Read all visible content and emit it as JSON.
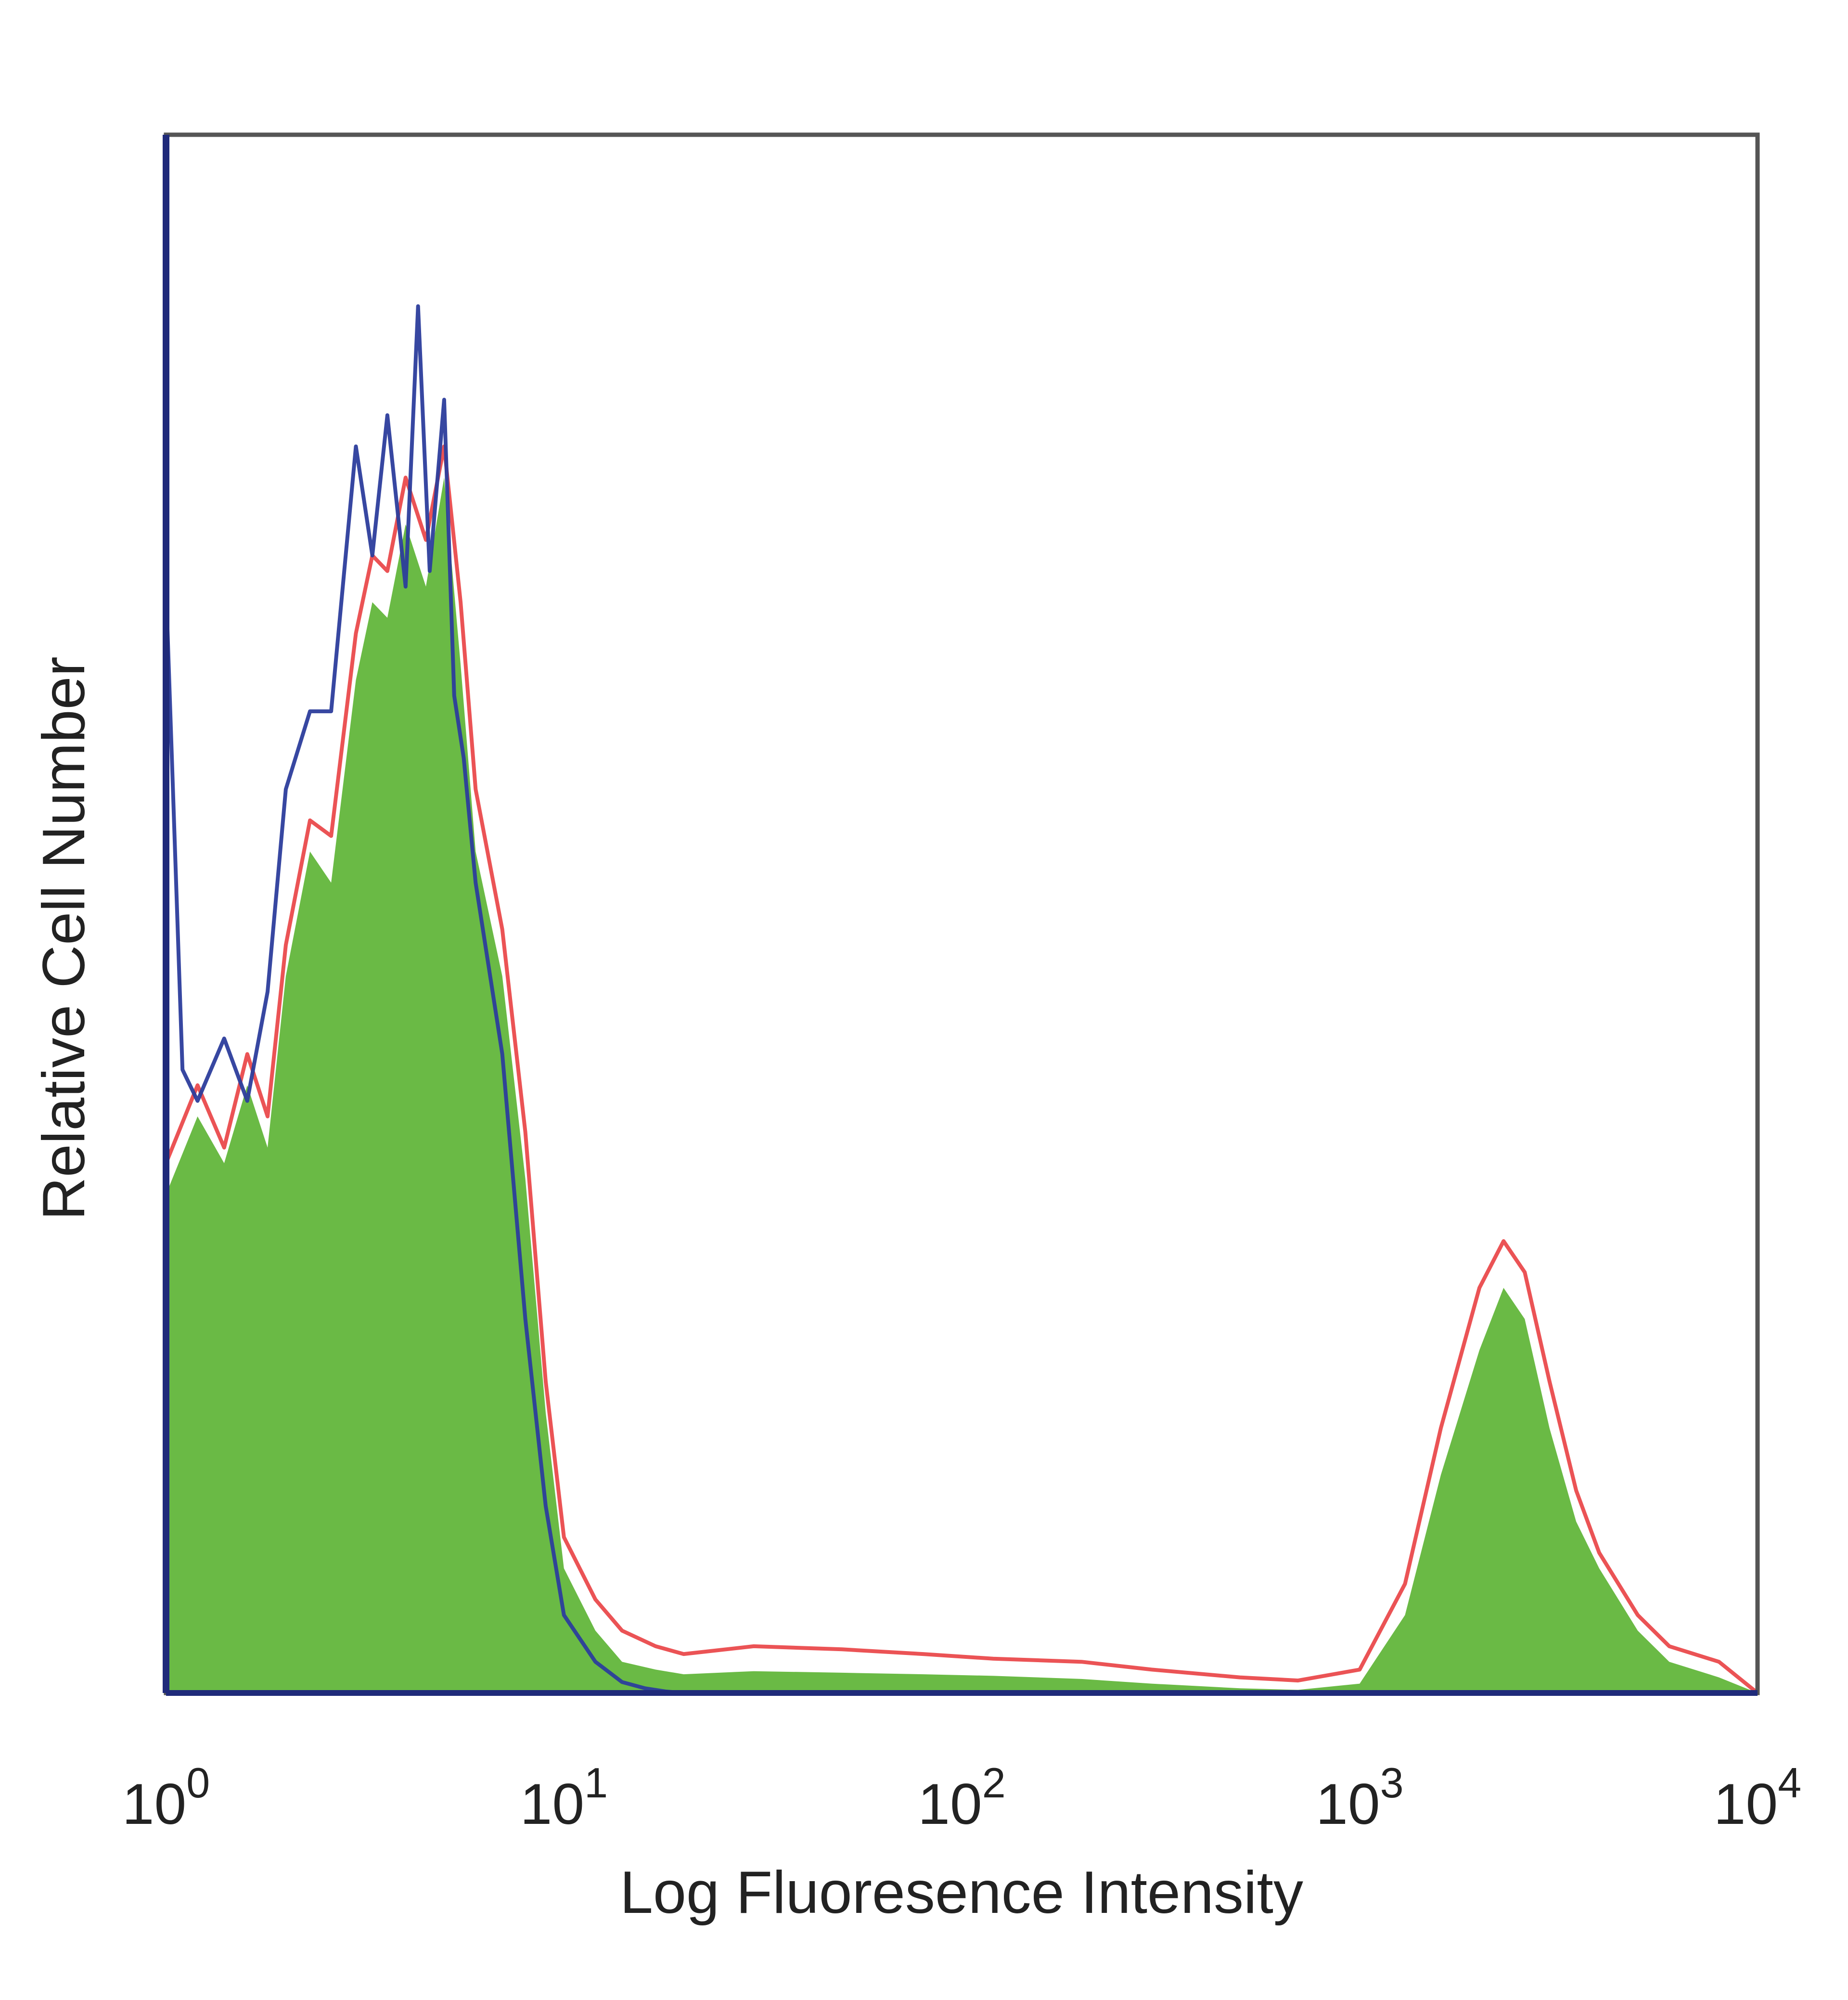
{
  "chart_data": {
    "type": "area",
    "title": "",
    "xlabel": "Log Fluoresence Intensity",
    "ylabel": "Relative Cell Number",
    "x_scale": "log",
    "xlim": [
      1,
      10000
    ],
    "ylim": [
      0,
      100
    ],
    "grid": false,
    "legend": "none",
    "x_ticks": [
      {
        "value": 1,
        "base": "10",
        "exp": "0"
      },
      {
        "value": 10,
        "base": "10",
        "exp": "1"
      },
      {
        "value": 100,
        "base": "10",
        "exp": "2"
      },
      {
        "value": 1000,
        "base": "10",
        "exp": "3"
      },
      {
        "value": 10000,
        "base": "10",
        "exp": "4"
      }
    ],
    "series": [
      {
        "style": "filled",
        "color": "#6aba45",
        "x": [
          1,
          1.2,
          1.4,
          1.6,
          1.8,
          2,
          2.3,
          2.6,
          3,
          3.3,
          3.6,
          4,
          4.5,
          5,
          5.5,
          6,
          7,
          8,
          9,
          10,
          12,
          14,
          17,
          20,
          30,
          50,
          80,
          120,
          200,
          300,
          500,
          700,
          1000,
          1300,
          1600,
          2000,
          2300,
          2600,
          3000,
          3500,
          4000,
          5000,
          6000,
          8000,
          10000
        ],
        "y": [
          32,
          37,
          34,
          39,
          35,
          46,
          54,
          52,
          65,
          70,
          69,
          75,
          71,
          78,
          66,
          54,
          46,
          33,
          18,
          8,
          4,
          2,
          1.5,
          1.2,
          1.4,
          1.3,
          1.2,
          1.1,
          0.9,
          0.6,
          0.3,
          0.2,
          0.6,
          5,
          14,
          22,
          26,
          24,
          17,
          11,
          8,
          4,
          2,
          1,
          0
        ]
      },
      {
        "style": "line",
        "color": "#e41a1c",
        "x": [
          1,
          1.2,
          1.4,
          1.6,
          1.8,
          2,
          2.3,
          2.6,
          3,
          3.3,
          3.6,
          4,
          4.5,
          5,
          5.5,
          6,
          7,
          8,
          9,
          10,
          12,
          14,
          17,
          20,
          30,
          50,
          80,
          120,
          200,
          300,
          500,
          700,
          1000,
          1300,
          1600,
          2000,
          2300,
          2600,
          3000,
          3500,
          4000,
          5000,
          6000,
          8000,
          10000
        ],
        "y": [
          34,
          39,
          35,
          41,
          37,
          48,
          56,
          55,
          68,
          73,
          72,
          78,
          74,
          80,
          70,
          58,
          49,
          36,
          20,
          10,
          6,
          4,
          3,
          2.5,
          3,
          2.8,
          2.5,
          2.2,
          2,
          1.5,
          1,
          0.8,
          1.5,
          7,
          17,
          26,
          29,
          27,
          20,
          13,
          9,
          5,
          3,
          2,
          0
        ]
      },
      {
        "style": "line",
        "color": "#2c3d9c",
        "x": [
          1,
          1.1,
          1.2,
          1.4,
          1.6,
          1.8,
          2,
          2.3,
          2.6,
          3,
          3.3,
          3.6,
          4,
          4.3,
          4.6,
          5,
          5.3,
          5.6,
          6,
          7,
          8,
          9,
          10,
          12,
          14,
          16,
          18,
          20
        ],
        "y": [
          71,
          40,
          38,
          42,
          38,
          45,
          58,
          63,
          63,
          80,
          73,
          82,
          71,
          89,
          72,
          83,
          64,
          60,
          52,
          41,
          24,
          12,
          5,
          2,
          0.7,
          0.3,
          0.1,
          0
        ]
      }
    ]
  }
}
